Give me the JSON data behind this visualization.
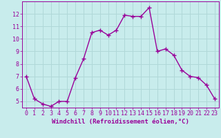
{
  "x": [
    0,
    1,
    2,
    3,
    4,
    5,
    6,
    7,
    8,
    9,
    10,
    11,
    12,
    13,
    14,
    15,
    16,
    17,
    18,
    19,
    20,
    21,
    22,
    23
  ],
  "y": [
    7.0,
    5.2,
    4.8,
    4.6,
    5.0,
    5.0,
    6.9,
    8.4,
    10.5,
    10.7,
    10.3,
    10.7,
    11.9,
    11.8,
    11.8,
    12.5,
    9.0,
    9.2,
    8.7,
    7.5,
    7.0,
    6.9,
    6.3,
    5.2
  ],
  "line_color": "#990099",
  "marker": "+",
  "marker_size": 4,
  "linewidth": 1.0,
  "xlabel": "Windchill (Refroidissement éolien,°C)",
  "xlabel_color": "#990099",
  "xlabel_fontsize": 6.5,
  "bg_color": "#c8ecec",
  "grid_color": "#b0d8d8",
  "tick_color": "#990099",
  "tick_fontsize": 6.0,
  "ylim": [
    4.5,
    13.0
  ],
  "xlim": [
    -0.5,
    23.5
  ],
  "yticks": [
    5,
    6,
    7,
    8,
    9,
    10,
    11,
    12
  ],
  "xticks": [
    0,
    1,
    2,
    3,
    4,
    5,
    6,
    7,
    8,
    9,
    10,
    11,
    12,
    13,
    14,
    15,
    16,
    17,
    18,
    19,
    20,
    21,
    22,
    23
  ]
}
